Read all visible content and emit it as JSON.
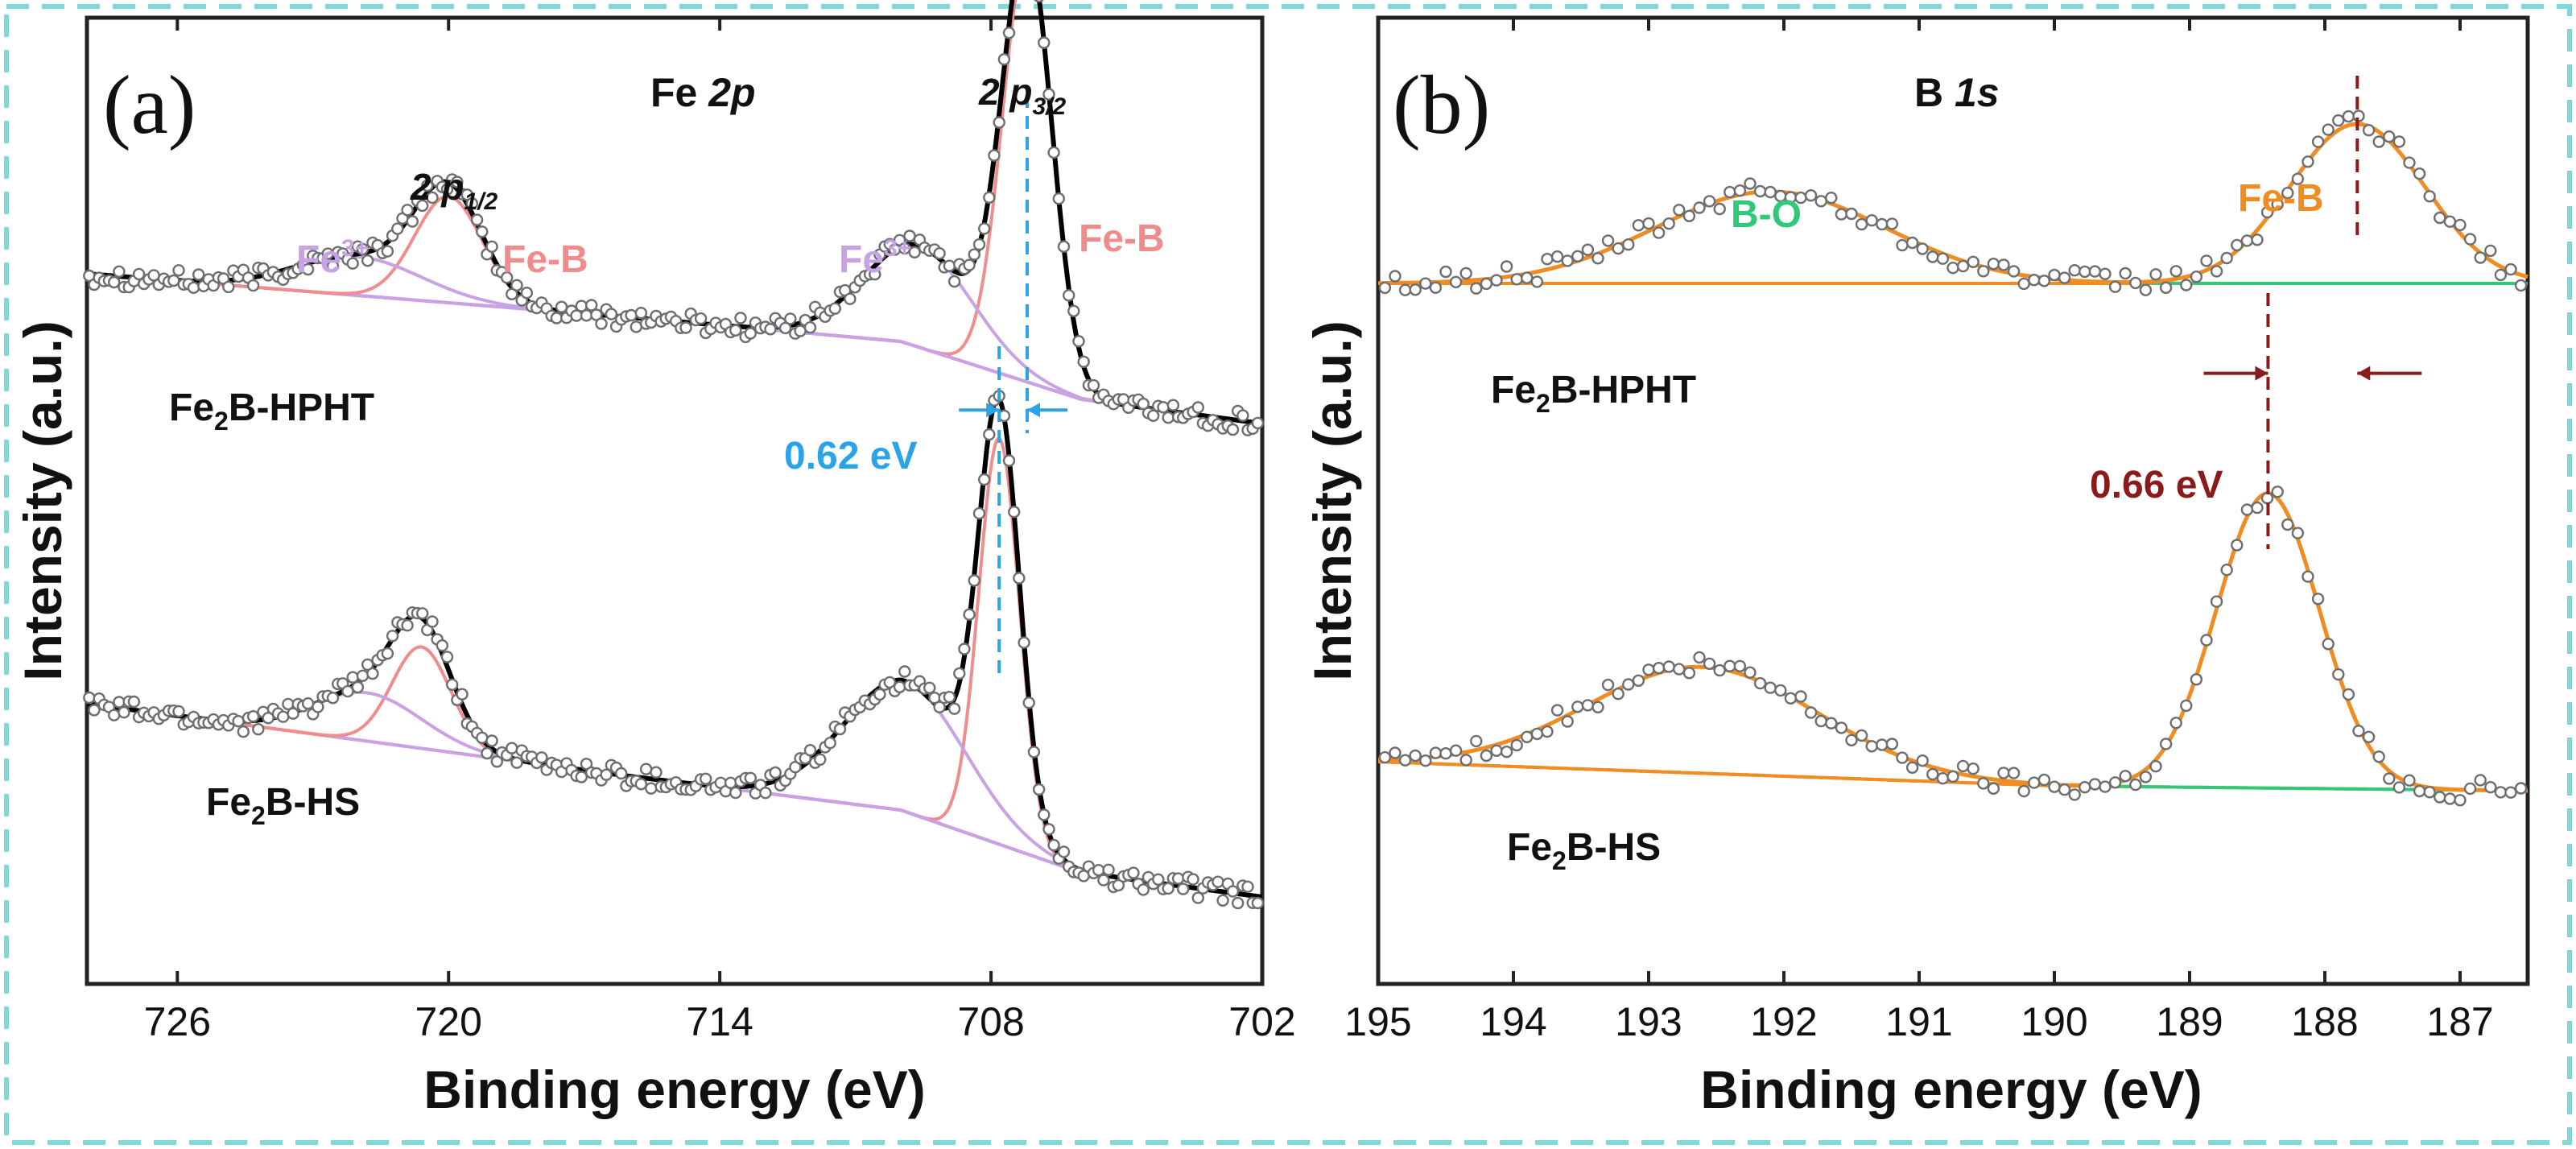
{
  "figure": {
    "panel_a": "(a)",
    "panel_b": "(b)"
  },
  "chart_data": [
    {
      "type": "line",
      "panel": "(a)",
      "title_prefix": "Fe ",
      "title_em": "2p",
      "xlabel": "Binding energy (eV)",
      "ylabel": "Intensity (a.u.)",
      "xlim": [
        728,
        702
      ],
      "ylim": [
        0,
        1
      ],
      "xticks": [
        726,
        720,
        714,
        708,
        702
      ],
      "grid": false,
      "peak_labels": {
        "p12_main": "2 p",
        "p12_sub": "1/2",
        "p32_main": "2 p",
        "p32_sub": "3/2"
      },
      "component_labels": {
        "fe3_main": "Fe",
        "fe3_sup": "3+",
        "feb": "Fe-B"
      },
      "shift": {
        "label": "0.62 eV",
        "x1": 707.2,
        "x2": 707.82
      },
      "colors": {
        "fit": "#000000",
        "feb": "#f08c8c",
        "fe3": "#c9a2e6",
        "shift": "#2aa3e8",
        "points": "#6e6e6e"
      },
      "samples": [
        {
          "name_main": "Fe",
          "name_sub": "2",
          "name_rest": "B-HPHT",
          "baseline": [
            [
              728,
              0.735
            ],
            [
              716,
              0.69
            ],
            [
              710,
              0.665
            ],
            [
              706,
              0.605
            ],
            [
              702,
              0.58
            ]
          ],
          "components": [
            {
              "name": "Fe-B 2p3/2",
              "center": 707.2,
              "height": 0.44,
              "sigma": 0.55,
              "color": "feb"
            },
            {
              "name": "Fe3+ 2p3/2",
              "center": 709.6,
              "height": 0.105,
              "sigma": 1.2,
              "color": "fe3"
            },
            {
              "name": "Fe-B 2p1/2",
              "center": 720.0,
              "height": 0.11,
              "sigma": 0.75,
              "color": "feb"
            },
            {
              "name": "Fe3+ 2p1/2",
              "center": 722.0,
              "height": 0.04,
              "sigma": 1.4,
              "color": "fe3"
            }
          ]
        },
        {
          "name_main": "Fe",
          "name_sub": "2",
          "name_rest": "B-HS",
          "baseline": [
            [
              728,
              0.29
            ],
            [
              716,
              0.215
            ],
            [
              710,
              0.18
            ],
            [
              706,
              0.115
            ],
            [
              702,
              0.09
            ]
          ],
          "components": [
            {
              "name": "Fe-B 2p3/2",
              "center": 707.82,
              "height": 0.42,
              "sigma": 0.45,
              "color": "feb"
            },
            {
              "name": "Fe3+ 2p3/2",
              "center": 709.9,
              "height": 0.135,
              "sigma": 1.35,
              "color": "fe3"
            },
            {
              "name": "Fe-B 2p1/2",
              "center": 720.6,
              "height": 0.105,
              "sigma": 0.65,
              "color": "feb"
            },
            {
              "name": "Fe3+ 2p1/2",
              "center": 721.8,
              "height": 0.05,
              "sigma": 1.2,
              "color": "fe3"
            }
          ]
        }
      ]
    },
    {
      "type": "line",
      "panel": "(b)",
      "title_prefix": "B ",
      "title_em": "1s",
      "xlabel": "Binding energy (eV)",
      "ylabel": "Intensity (a.u.)",
      "xlim": [
        195,
        186.5
      ],
      "ylim": [
        0,
        1
      ],
      "xticks": [
        195,
        194,
        193,
        192,
        191,
        190,
        189,
        188,
        187
      ],
      "grid": false,
      "component_labels": {
        "bo": "B-O",
        "feb": "Fe-B"
      },
      "shift": {
        "label": "0.66 eV",
        "x1": 188.42,
        "x2": 187.76
      },
      "colors": {
        "fit": "#000000",
        "bo": "#2fc979",
        "feb": "#f08c21",
        "shift": "#8b1a1a",
        "points": "#6e6e6e"
      },
      "samples": [
        {
          "name_main": "Fe",
          "name_sub": "2",
          "name_rest": "B-HPHT",
          "baseline": [
            [
              195,
              0.725
            ],
            [
              186.5,
              0.725
            ]
          ],
          "components": [
            {
              "name": "B-O",
              "center": 192.1,
              "height": 0.095,
              "sigma": 0.85,
              "color": "bo"
            },
            {
              "name": "Fe-B",
              "center": 187.76,
              "height": 0.165,
              "sigma": 0.5,
              "color": "feb"
            }
          ]
        },
        {
          "name_main": "Fe",
          "name_sub": "2",
          "name_rest": "B-HS",
          "baseline": [
            [
              195,
              0.23
            ],
            [
              190,
              0.205
            ],
            [
              186.5,
              0.2
            ]
          ],
          "components": [
            {
              "name": "B-O",
              "center": 192.6,
              "height": 0.11,
              "sigma": 0.85,
              "color": "bo"
            },
            {
              "name": "Fe-B",
              "center": 188.42,
              "height": 0.305,
              "sigma": 0.38,
              "color": "feb"
            }
          ]
        }
      ]
    }
  ]
}
